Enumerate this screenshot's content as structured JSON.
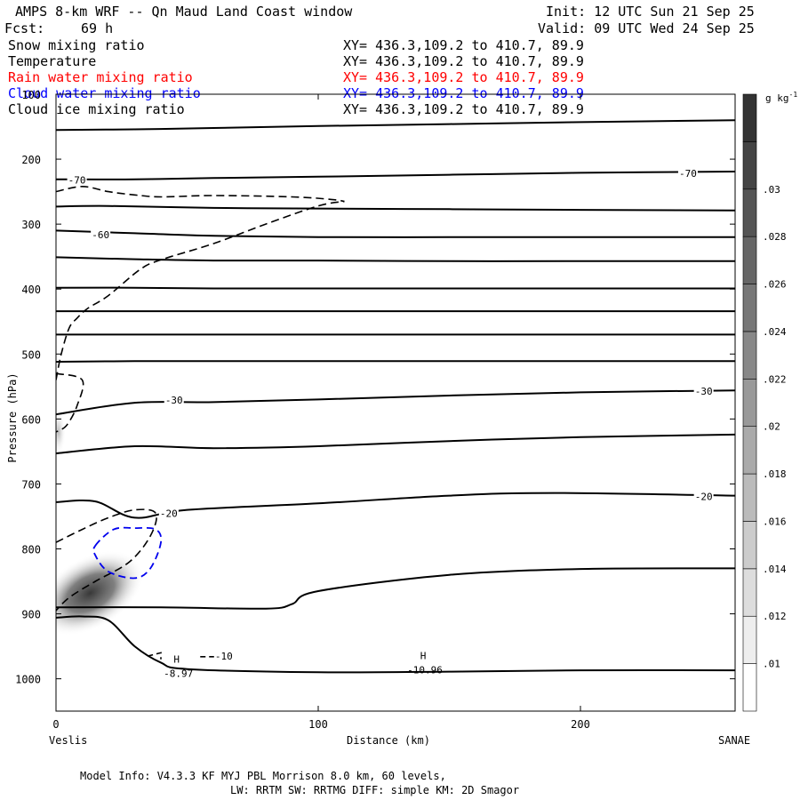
{
  "header": {
    "title": "AMPS 8-km WRF -- Qn Maud Land Coast window",
    "init": "Init: 12 UTC Sun 21 Sep 25",
    "fcst_label": "Fcst:",
    "fcst_value": "69 h",
    "valid": "Valid: 09 UTC Wed 24 Sep 25",
    "fields": [
      {
        "name": "Snow mixing ratio",
        "xy": "XY= 436.3,109.2 to 410.7, 89.9",
        "color": "#000000"
      },
      {
        "name": "Temperature",
        "xy": "XY= 436.3,109.2 to 410.7, 89.9",
        "color": "#000000"
      },
      {
        "name": "Rain water mixing ratio",
        "xy": "XY= 436.3,109.2 to 410.7, 89.9",
        "color": "#ff0000"
      },
      {
        "name": "Cloud water mixing ratio",
        "xy": "XY= 436.3,109.2 to 410.7, 89.9",
        "color": "#0000ff"
      },
      {
        "name": "Cloud ice mixing ratio",
        "xy": "XY= 436.3,109.2 to 410.7, 89.9",
        "color": "#000000"
      }
    ]
  },
  "chart_data": {
    "type": "contour-cross-section",
    "title": "AMPS 8-km WRF -- Qn Maud Land Coast window",
    "xlabel": "Distance (km)",
    "ylabel": "Pressure (hPa)",
    "xlim": [
      0,
      259
    ],
    "ylim": [
      1050,
      100
    ],
    "x_ticks": [
      0,
      100,
      200
    ],
    "x_tick_labels": [
      "0",
      "100",
      "200"
    ],
    "y_ticks": [
      100,
      200,
      300,
      400,
      500,
      600,
      700,
      800,
      900,
      1000
    ],
    "y_tick_labels": [
      "100",
      "200",
      "300",
      "400",
      "500",
      "600",
      "700",
      "800",
      "900",
      "1000"
    ],
    "left_end_label": "Veslis",
    "right_end_label": "SANAE",
    "colorbar": {
      "unit": "g kg",
      "unit_exponent": "-1",
      "tick_labels": [
        ".01",
        ".012",
        ".014",
        ".016",
        ".018",
        ".02",
        ".022",
        ".024",
        ".026",
        ".028",
        ".03"
      ],
      "levels": [
        0.008,
        0.01,
        0.012,
        0.014,
        0.016,
        0.018,
        0.02,
        0.022,
        0.024,
        0.026,
        0.028,
        0.03,
        0.032
      ],
      "color_low": "#ffffff",
      "color_high": "#333333"
    },
    "temperature_isotherms": [
      {
        "label": "-70",
        "x": [
          0,
          30,
          60,
          100,
          150,
          200,
          259
        ],
        "p": [
          231,
          231,
          229,
          227,
          224,
          221,
          219
        ]
      },
      {
        "label": "",
        "x": [
          0,
          30,
          60,
          100,
          150,
          200,
          259
        ],
        "p": [
          155,
          154,
          152,
          149,
          146,
          143,
          140
        ]
      },
      {
        "label": "",
        "x": [
          0,
          20,
          60,
          100,
          150,
          200,
          259
        ],
        "p": [
          273,
          272,
          275,
          276,
          277,
          278,
          279
        ]
      },
      {
        "label": "-60",
        "x": [
          0,
          30,
          60,
          100,
          150,
          200,
          259
        ],
        "p": [
          310,
          314,
          318,
          320,
          320,
          320,
          320
        ]
      },
      {
        "label": "",
        "x": [
          0,
          30,
          60,
          100,
          150,
          200,
          259
        ],
        "p": [
          351,
          354,
          356,
          356,
          357,
          357,
          357
        ]
      },
      {
        "label": "",
        "x": [
          0,
          30,
          60,
          100,
          150,
          200,
          259
        ],
        "p": [
          398,
          398,
          399,
          399,
          399,
          399,
          399
        ]
      },
      {
        "label": "",
        "x": [
          0,
          30,
          60,
          100,
          150,
          200,
          259
        ],
        "p": [
          434,
          434,
          434,
          434,
          434,
          434,
          434
        ]
      },
      {
        "label": "",
        "x": [
          0,
          30,
          60,
          100,
          150,
          200,
          259
        ],
        "p": [
          470,
          470,
          470,
          470,
          470,
          470,
          470
        ]
      },
      {
        "label": "",
        "x": [
          0,
          30,
          60,
          100,
          150,
          200,
          259
        ],
        "p": [
          512,
          511,
          511,
          511,
          511,
          511,
          511
        ]
      },
      {
        "label": "-30",
        "x": [
          0,
          30,
          60,
          100,
          150,
          200,
          259
        ],
        "p": [
          593,
          575,
          574,
          570,
          564,
          559,
          556
        ]
      },
      {
        "label": "",
        "x": [
          0,
          30,
          60,
          100,
          150,
          200,
          259
        ],
        "p": [
          653,
          642,
          645,
          642,
          634,
          628,
          624
        ]
      },
      {
        "label": "-20",
        "x": [
          0,
          15,
          30,
          50,
          100,
          150,
          190,
          259
        ],
        "p": [
          728,
          727,
          752,
          740,
          730,
          718,
          714,
          718
        ]
      },
      {
        "label": "",
        "x": [
          0,
          40,
          80,
          90,
          100,
          150,
          200,
          259
        ],
        "p": [
          890,
          890,
          892,
          885,
          865,
          840,
          831,
          830
        ]
      },
      {
        "label": "-10",
        "x": [
          0,
          10,
          20,
          30,
          40,
          50,
          100,
          150,
          200,
          259
        ],
        "p": [
          906,
          904,
          910,
          950,
          975,
          985,
          990,
          989,
          987,
          987
        ]
      }
    ],
    "snow_contours_dashed": [
      {
        "x": [
          0,
          2,
          5,
          8,
          12,
          20,
          32,
          40,
          60,
          80,
          100,
          110
        ],
        "p": [
          540,
          500,
          460,
          445,
          430,
          410,
          370,
          355,
          330,
          300,
          272,
          265
        ]
      },
      {
        "x": [
          0,
          10,
          20,
          30,
          40,
          60,
          90,
          105,
          110
        ],
        "p": [
          250,
          242,
          250,
          255,
          258,
          256,
          258,
          262,
          265
        ]
      }
    ],
    "cloud_water_contours_blue": [
      {
        "x": [
          15,
          22,
          30,
          38,
          40,
          36,
          30,
          20,
          15
        ],
        "p": [
          795,
          770,
          768,
          770,
          790,
          830,
          845,
          835,
          810
        ]
      }
    ],
    "extrema": [
      {
        "symbol": "H",
        "x": 46,
        "p": 975,
        "value": "-8.97"
      },
      {
        "symbol": "H",
        "x": 140,
        "p": 970,
        "value": "-10.96"
      }
    ],
    "contour_labels": [
      "-70",
      "-70",
      "-60",
      "-30",
      "-30",
      "-20",
      "-20",
      "-10"
    ]
  },
  "footer": {
    "line1": "Model Info: V4.3.3   KF      MYJ PBL  Morrison             8.0 km,  60 levels,",
    "line2": "LW: RRTM SW: RRTMG   DIFF: simple KM: 2D Smagor"
  }
}
